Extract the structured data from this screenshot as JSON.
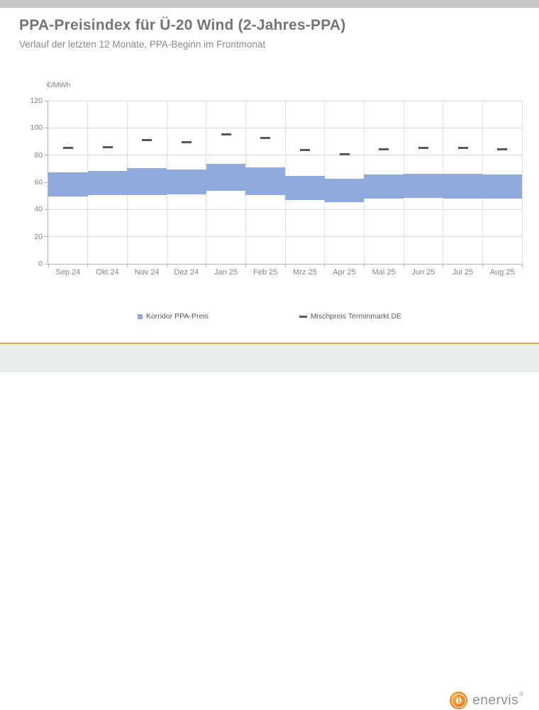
{
  "chart_data": {
    "type": "bar",
    "subtype": "floating-range-bars-with-dash-markers",
    "title": "PPA-Preisindex für Ü-20 Wind (2-Jahres-PPA)",
    "subtitle": "Verlauf der letzten 12 Monate, PPA-Beginn im Frontmonat",
    "ylabel": "€/MWh",
    "xlabel": "",
    "ylim": [
      0,
      120
    ],
    "yticks": [
      0,
      20,
      40,
      60,
      80,
      100,
      120
    ],
    "grid": true,
    "legend_position": "bottom",
    "categories": [
      "Sep 24",
      "Okt 24",
      "Nov 24",
      "Dez 24",
      "Jan 25",
      "Feb 25",
      "Mrz 25",
      "Apr 25",
      "Mai 25",
      "Jun 25",
      "Jul 25",
      "Aug 25"
    ],
    "series": [
      {
        "name": "Korridor PPA-Preis",
        "type": "range",
        "color": "#8faadc",
        "low": [
          49.5,
          50.5,
          50.5,
          51.0,
          53.5,
          50.5,
          47.0,
          45.5,
          48.0,
          48.5,
          48.0,
          48.0
        ],
        "high": [
          67.5,
          68.5,
          70.5,
          69.5,
          73.5,
          71.0,
          64.5,
          62.5,
          66.0,
          66.5,
          66.5,
          65.5
        ]
      },
      {
        "name": "Mischpreis Terminmarkt DE",
        "type": "dash",
        "color": "#595959",
        "values": [
          85.5,
          86.0,
          91.0,
          89.5,
          95.0,
          92.5,
          84.0,
          80.5,
          84.5,
          85.5,
          85.5,
          84.5
        ]
      }
    ]
  },
  "colors": {
    "corridor_blue": "#8faadc",
    "dash_gray": "#595959",
    "divider_orange": "#dda23c",
    "logo_orange": "#e87d1e",
    "top_bar_gray": "#c7c7c7"
  },
  "footer": {
    "logo_letter": "e",
    "logo_text": "enervis",
    "registered_mark": "®"
  }
}
